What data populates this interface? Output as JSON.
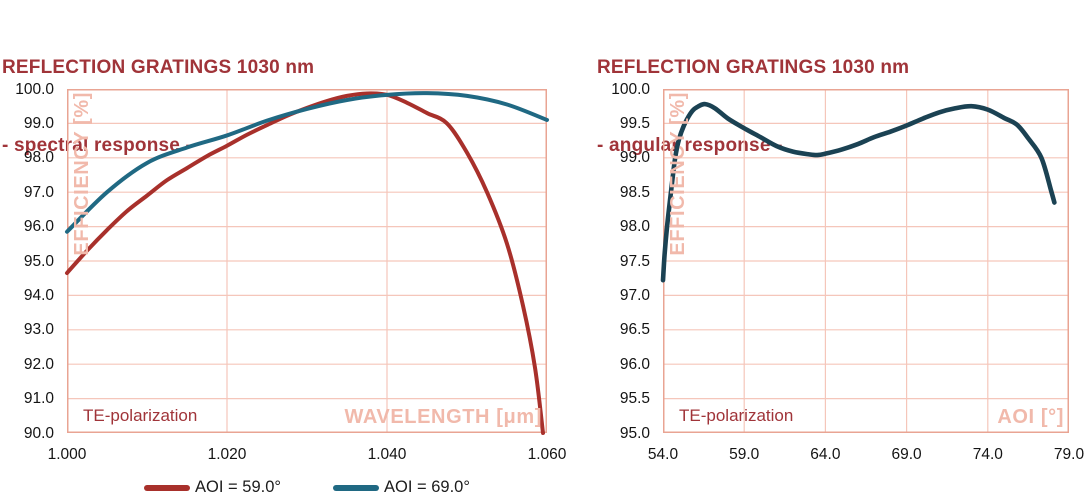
{
  "colors": {
    "title_red": "#A03439",
    "curve_red": "#A8302B",
    "curve_teal": "#206983",
    "curve_dark_teal": "#1B4253",
    "grid_pink": "#F5C6BA",
    "border_pink": "#E9A493",
    "axis_label_pink": "#F1B9AB",
    "tick_text": "#141414"
  },
  "chart_data": [
    {
      "id": "spectral_response",
      "type": "line",
      "title": "REFLECTION GRATINGS 1030 nm",
      "subtitle": "- spectral response -",
      "xlabel": "WAVELENGTH [μm]",
      "ylabel": "EFFICIENCY [%]",
      "annotation": "TE-polarization",
      "grid": true,
      "legend_position": "bottom",
      "xlim": [
        1.0,
        1.06
      ],
      "ylim": [
        90.0,
        100.0
      ],
      "x_ticks": [
        "1.000",
        "1.020",
        "1.040",
        "1.060"
      ],
      "x_tick_values": [
        1.0,
        1.02,
        1.04,
        1.06
      ],
      "y_ticks": [
        "100.0",
        "99.0",
        "98.0",
        "97.0",
        "96.0",
        "95.0",
        "94.0",
        "93.0",
        "92.0",
        "91.0",
        "90.0"
      ],
      "y_tick_values": [
        100.0,
        99.0,
        98.0,
        97.0,
        96.0,
        95.0,
        94.0,
        93.0,
        92.0,
        91.0,
        90.0
      ],
      "series": [
        {
          "name": "AOI = 59.0°",
          "color": "#A8302B",
          "x": [
            1.0,
            1.0025,
            1.005,
            1.0075,
            1.01,
            1.0125,
            1.015,
            1.0175,
            1.02,
            1.0225,
            1.025,
            1.0275,
            1.03,
            1.0325,
            1.035,
            1.0375,
            1.04,
            1.0425,
            1.045,
            1.0475,
            1.05,
            1.0525,
            1.055,
            1.057,
            1.0585,
            1.0595
          ],
          "y": [
            94.65,
            95.3,
            95.9,
            96.45,
            96.9,
            97.35,
            97.7,
            98.05,
            98.35,
            98.67,
            98.95,
            99.22,
            99.45,
            99.65,
            99.8,
            99.87,
            99.83,
            99.6,
            99.3,
            99.0,
            98.15,
            97.0,
            95.5,
            93.7,
            91.9,
            90.0
          ]
        },
        {
          "name": "AOI = 69.0°",
          "color": "#206983",
          "x": [
            1.0,
            1.005,
            1.01,
            1.015,
            1.02,
            1.025,
            1.03,
            1.035,
            1.04,
            1.045,
            1.05,
            1.055,
            1.06
          ],
          "y": [
            95.85,
            97.0,
            97.85,
            98.3,
            98.65,
            99.08,
            99.42,
            99.68,
            99.83,
            99.88,
            99.8,
            99.55,
            99.1
          ]
        }
      ]
    },
    {
      "id": "angular_response",
      "type": "line",
      "title": "REFLECTION GRATINGS 1030 nm",
      "subtitle": "- angular response -",
      "xlabel": "AOI [°]",
      "ylabel": "EFFICIENCY [%]",
      "annotation": "TE-polarization",
      "grid": true,
      "legend_position": "none",
      "xlim": [
        54.0,
        79.0
      ],
      "ylim": [
        95.0,
        100.0
      ],
      "x_ticks": [
        "54.0",
        "59.0",
        "64.0",
        "69.0",
        "74.0",
        "79.0"
      ],
      "x_tick_values": [
        54.0,
        59.0,
        64.0,
        69.0,
        74.0,
        79.0
      ],
      "y_ticks": [
        "100.0",
        "99.5",
        "99.0",
        "98.5",
        "98.0",
        "97.5",
        "97.0",
        "96.5",
        "96.0",
        "95.5",
        "95.0"
      ],
      "y_tick_values": [
        100.0,
        99.5,
        99.0,
        98.5,
        98.0,
        97.5,
        97.0,
        96.5,
        96.0,
        95.5,
        95.0
      ],
      "series": [
        {
          "name": "",
          "color": "#1B4253",
          "x": [
            54.0,
            54.1,
            54.25,
            54.5,
            54.75,
            55.0,
            55.35,
            55.8,
            56.2,
            56.6,
            57.2,
            58.0,
            59.0,
            60.0,
            61.0,
            62.0,
            63.0,
            63.5,
            64.0,
            65.0,
            66.0,
            67.0,
            68.0,
            69.0,
            70.0,
            71.0,
            72.0,
            73.0,
            74.0,
            75.0,
            75.8,
            76.5,
            77.3,
            77.9,
            78.1
          ],
          "y": [
            97.22,
            97.6,
            98.0,
            98.52,
            99.0,
            99.28,
            99.5,
            99.68,
            99.75,
            99.78,
            99.72,
            99.57,
            99.43,
            99.3,
            99.17,
            99.09,
            99.05,
            99.04,
            99.06,
            99.12,
            99.2,
            99.3,
            99.38,
            99.47,
            99.57,
            99.66,
            99.72,
            99.75,
            99.7,
            99.58,
            99.48,
            99.28,
            99.0,
            98.52,
            98.35
          ]
        }
      ]
    }
  ]
}
